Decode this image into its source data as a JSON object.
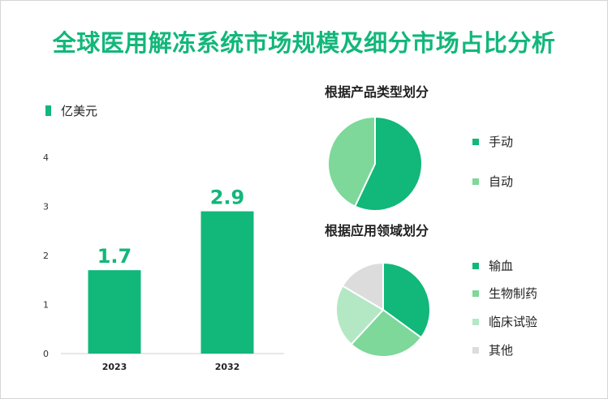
{
  "title": "全球医用解冻系统市场规模及细分市场占比分析",
  "colors": {
    "primary": "#12b77a",
    "light_green": "#7dd89a",
    "pale_green": "#b4e8c4",
    "gray": "#dcdcdc"
  },
  "chart_data": [
    {
      "type": "bar",
      "legend": "亿美元",
      "categories": [
        "2023",
        "2032"
      ],
      "values": [
        1.7,
        2.9
      ],
      "value_labels": [
        "1.7",
        "2.9"
      ],
      "ylim": [
        0,
        4
      ],
      "yticks": [
        "0",
        "1",
        "2",
        "3",
        "4"
      ],
      "grid": false
    },
    {
      "type": "pie",
      "title": "根据产品类型划分",
      "labels": [
        "手动",
        "自动"
      ],
      "values": [
        57,
        43
      ],
      "colors": [
        "#12b77a",
        "#7dd89a"
      ]
    },
    {
      "type": "pie",
      "title": "根据应用领域划分",
      "labels": [
        "输血",
        "生物制药",
        "临床试验",
        "其他"
      ],
      "values": [
        34,
        26,
        21,
        16
      ],
      "colors": [
        "#12b77a",
        "#7dd89a",
        "#b4e8c4",
        "#dcdcdc"
      ]
    }
  ]
}
